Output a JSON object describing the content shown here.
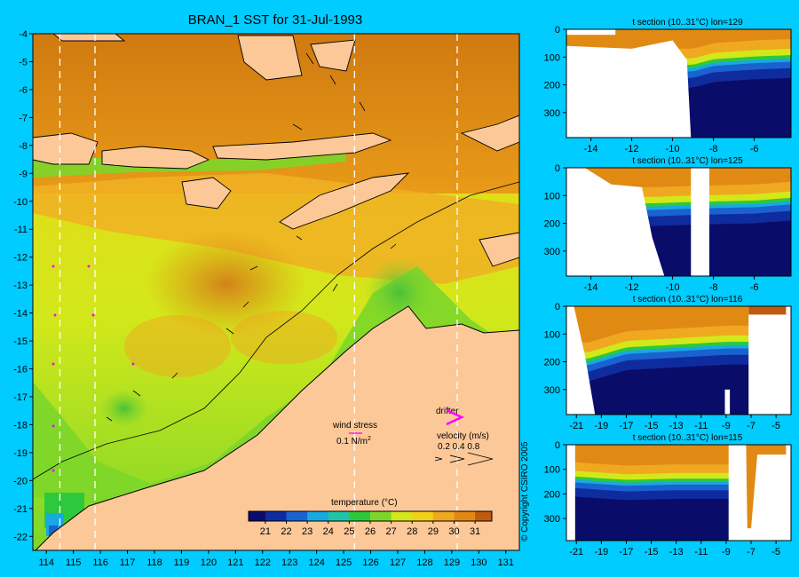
{
  "page": {
    "title": "BRAN_1 SST for 31-Jul-1993",
    "copyright": "© Copyright CSIRO 2005",
    "colors": {
      "background": "#00ccff",
      "land": "#fcc898",
      "ocean_warm": "#e08a14",
      "ocean_cool": "#7cd62a"
    }
  },
  "map": {
    "x_ticks": [
      "114",
      "115",
      "116",
      "117",
      "118",
      "119",
      "120",
      "121",
      "122",
      "123",
      "124",
      "125",
      "126",
      "127",
      "128",
      "129",
      "130",
      "131"
    ],
    "y_ticks": [
      "-4",
      "-5",
      "-6",
      "-7",
      "-8",
      "-9",
      "-10",
      "-11",
      "-12",
      "-13",
      "-14",
      "-15",
      "-16",
      "-17",
      "-18",
      "-19",
      "-20",
      "-21",
      "-22"
    ],
    "section_lons": [
      114.5,
      115.8,
      125.4,
      129.2
    ],
    "wind_stress_label": "wind stress",
    "wind_stress_value": "0.1 N/m",
    "wind_stress_sup": "2",
    "drifter_label": "drifter",
    "velocity_label": "velocity (m/s)",
    "velocity_values": "0.2 0.4 0.8",
    "colorbar_title": "temperature (°C)",
    "colorbar_ticks": [
      "21",
      "22",
      "23",
      "24",
      "25",
      "26",
      "27",
      "28",
      "29",
      "30",
      "31"
    ]
  },
  "chart_data": [
    {
      "type": "heatmap",
      "title": "BRAN_1 SST for 31-Jul-1993",
      "xlabel": "",
      "ylabel": "",
      "xlim": [
        113.5,
        131.5
      ],
      "ylim": [
        -22.5,
        -4
      ],
      "colorbar": {
        "label": "temperature (°C)",
        "range": [
          20.2,
          31.8
        ],
        "stops": [
          {
            "value": 20.2,
            "color": "#0a0c6a"
          },
          {
            "value": 21,
            "color": "#0f2c9e"
          },
          {
            "value": 22,
            "color": "#1a62cf"
          },
          {
            "value": 23,
            "color": "#18a8e2"
          },
          {
            "value": 24,
            "color": "#22c4a8"
          },
          {
            "value": 25,
            "color": "#2ec83c"
          },
          {
            "value": 26,
            "color": "#7cd62a"
          },
          {
            "value": 27,
            "color": "#d2e81a"
          },
          {
            "value": 28,
            "color": "#f2d018"
          },
          {
            "value": 29,
            "color": "#f0a820"
          },
          {
            "value": 30,
            "color": "#e08a14"
          },
          {
            "value": 31,
            "color": "#c05a10"
          },
          {
            "value": 31.8,
            "color": "#8a3208"
          }
        ]
      }
    },
    {
      "type": "heatmap",
      "title": "t section (10..31°C) lon=129",
      "xlabel": "",
      "ylabel": "",
      "x_ticks": [
        -14,
        -12,
        -10,
        -8,
        -6
      ],
      "y_ticks": [
        0,
        100,
        200,
        300
      ],
      "xlim": [
        -15.2,
        -4.2
      ],
      "ylim": [
        390,
        0
      ],
      "land_boundary": [
        [
          -15.2,
          60
        ],
        [
          -12,
          70
        ],
        [
          -10,
          40
        ],
        [
          -9.3,
          110
        ],
        [
          -9.1,
          390
        ]
      ],
      "thermocline_depth": [
        [
          -9,
          140
        ],
        [
          -8,
          120
        ],
        [
          -6,
          110
        ],
        [
          -4.2,
          105
        ]
      ]
    },
    {
      "type": "heatmap",
      "title": "t section (10..31°C) lon=125",
      "xlabel": "",
      "ylabel": "",
      "x_ticks": [
        -14,
        -12,
        -10,
        -8,
        -6
      ],
      "y_ticks": [
        0,
        100,
        200,
        300
      ],
      "xlim": [
        -15.2,
        -4.2
      ],
      "ylim": [
        390,
        0
      ],
      "land_boundary": [
        [
          -14.3,
          0
        ],
        [
          -13,
          60
        ],
        [
          -11.5,
          70
        ],
        [
          -11,
          250
        ],
        [
          -10.4,
          390
        ]
      ],
      "thermocline_depth": [
        [
          -11,
          140
        ],
        [
          -9,
          135
        ],
        [
          -6,
          130
        ],
        [
          -4.2,
          120
        ]
      ]
    },
    {
      "type": "heatmap",
      "title": "t section (10..31°C) lon=116",
      "xlabel": "",
      "ylabel": "",
      "x_ticks": [
        -21,
        -19,
        -17,
        -15,
        -13,
        -11,
        -9,
        -7,
        -5
      ],
      "y_ticks": [
        0,
        100,
        200,
        300
      ],
      "xlim": [
        -21.8,
        -3.8
      ],
      "ylim": [
        390,
        0
      ],
      "land_boundary": [
        [
          -21.2,
          0
        ],
        [
          -20.3,
          180
        ],
        [
          -19.5,
          390
        ]
      ],
      "thermocline_depth": [
        [
          -20,
          200
        ],
        [
          -17,
          160
        ],
        [
          -13,
          150
        ],
        [
          -9,
          140
        ],
        [
          -7.3,
          140
        ]
      ]
    },
    {
      "type": "heatmap",
      "title": "t section (10..31°C) lon=115",
      "xlabel": "",
      "ylabel": "",
      "x_ticks": [
        -21,
        -19,
        -17,
        -15,
        -13,
        -11,
        -9,
        -7,
        -5
      ],
      "y_ticks": [
        0,
        100,
        200,
        300
      ],
      "xlim": [
        -21.8,
        -3.8
      ],
      "ylim": [
        390,
        0
      ],
      "land_boundary": [
        [
          -21.8,
          0
        ],
        [
          -9,
          390
        ]
      ],
      "thermocline_depth": [
        [
          -21.5,
          140
        ],
        [
          -17,
          155
        ],
        [
          -13,
          150
        ],
        [
          -9,
          150
        ]
      ]
    }
  ]
}
